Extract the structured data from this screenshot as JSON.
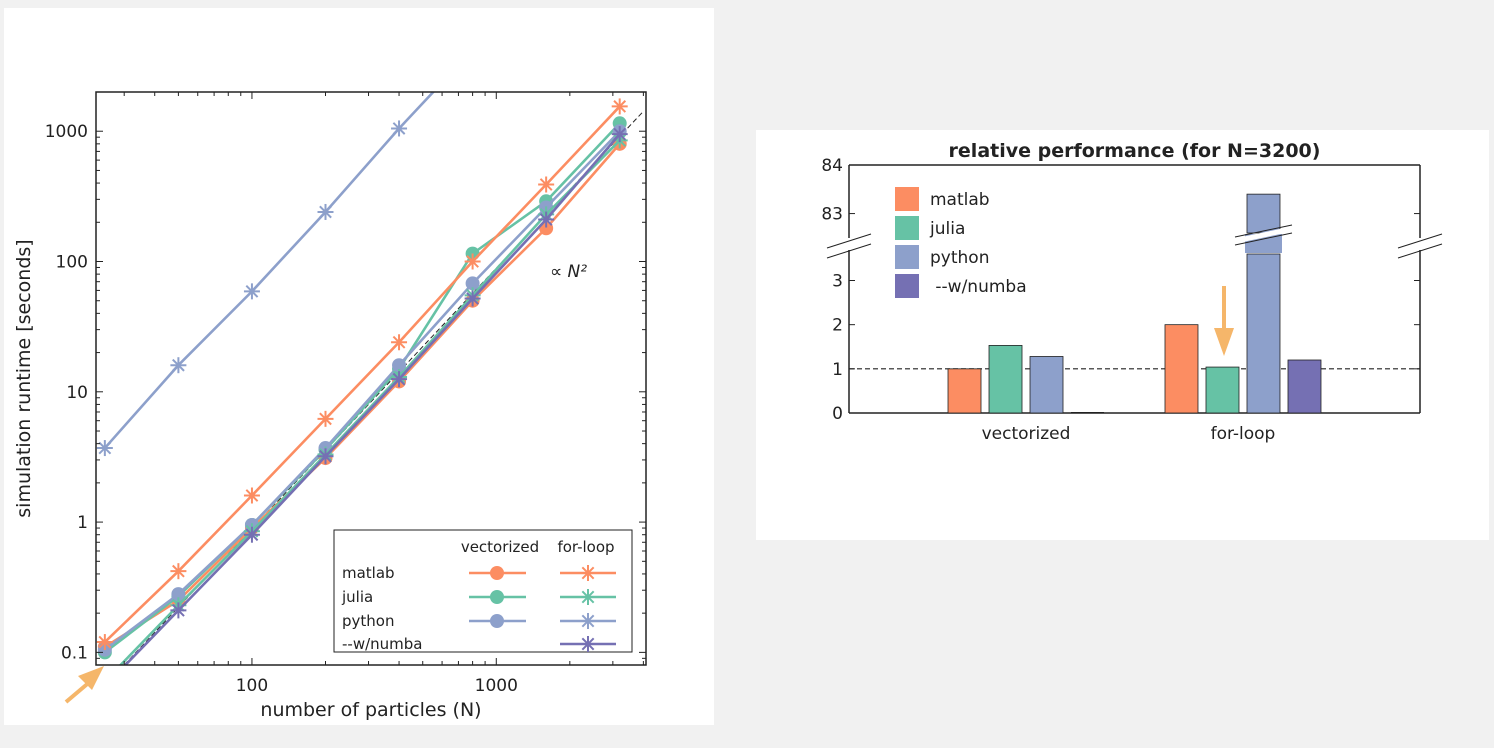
{
  "colors": {
    "matlab": "#fc8d62",
    "julia": "#66c2a5",
    "python": "#8da0cb",
    "numba": "#7570b3",
    "arrow": "#f5b66a"
  },
  "left_legend": {
    "col_vectorized": "vectorized",
    "col_forloop": "for-loop",
    "rows": [
      "matlab",
      "julia",
      "python",
      "--w/numba"
    ]
  },
  "chart_data": [
    {
      "type": "line",
      "xlabel": "number of particles (N)",
      "ylabel": "simulation runtime [seconds]",
      "xscale": "log",
      "yscale": "log",
      "xlim": [
        23,
        4100
      ],
      "ylim": [
        0.08,
        2000
      ],
      "xticks": [
        100,
        1000
      ],
      "xtick_labels": [
        "100",
        "1000"
      ],
      "yticks": [
        0.1,
        1,
        10,
        100,
        1000
      ],
      "ytick_labels": [
        "0.1",
        "1",
        "10",
        "100",
        "1000"
      ],
      "annotation": "∝ N²",
      "legend_position": "bottom-right",
      "grid": false,
      "x": [
        25,
        50,
        100,
        200,
        400,
        800,
        1600,
        3200
      ],
      "series": [
        {
          "name": "matlab",
          "style": "vectorized",
          "color": "#fc8d62",
          "values": [
            0.11,
            0.25,
            0.9,
            3.1,
            12,
            50,
            180,
            800
          ]
        },
        {
          "name": "julia",
          "style": "vectorized",
          "color": "#66c2a5",
          "values": [
            0.1,
            0.27,
            0.95,
            3.6,
            15,
            115,
            290,
            1150
          ]
        },
        {
          "name": "python",
          "style": "vectorized",
          "color": "#8da0cb",
          "values": [
            0.105,
            0.28,
            0.95,
            3.7,
            16,
            68,
            260,
            1000
          ]
        },
        {
          "name": "matlab",
          "style": "for-loop",
          "color": "#fc8d62",
          "values": [
            0.12,
            0.42,
            1.6,
            6.2,
            24,
            100,
            390,
            1550
          ]
        },
        {
          "name": "julia",
          "style": "for-loop",
          "color": "#66c2a5",
          "values": [
            0.06,
            0.23,
            0.85,
            3.3,
            13,
            55,
            230,
            850
          ]
        },
        {
          "name": "python",
          "style": "for-loop",
          "color": "#8da0cb",
          "values": [
            3.7,
            16,
            59,
            240,
            1050,
            4200,
            null,
            null
          ]
        },
        {
          "name": "--w/numba",
          "style": "for-loop",
          "color": "#7570b3",
          "values": [
            0.055,
            0.21,
            0.8,
            3.2,
            12.5,
            52,
            210,
            950
          ]
        }
      ]
    },
    {
      "type": "bar",
      "title": "relative performance (for N=3200)",
      "categories": [
        "vectorized",
        "for-loop"
      ],
      "yticks_lower": [
        0,
        1,
        2,
        3
      ],
      "yticks_upper": [
        83,
        84
      ],
      "ylim_lower": [
        0,
        3.6
      ],
      "ylim_upper": [
        82.6,
        84
      ],
      "reference_line": 1,
      "legend_position": "top-left",
      "series": [
        {
          "name": "matlab",
          "color": "#fc8d62",
          "values": [
            1.0,
            2.0
          ]
        },
        {
          "name": "julia",
          "color": "#66c2a5",
          "values": [
            1.53,
            1.04
          ]
        },
        {
          "name": "python",
          "color": "#8da0cb",
          "values": [
            1.28,
            83.4
          ]
        },
        {
          "name": " --w/numba",
          "color": "#7570b3",
          "values": [
            0.0,
            1.2
          ]
        }
      ]
    }
  ]
}
